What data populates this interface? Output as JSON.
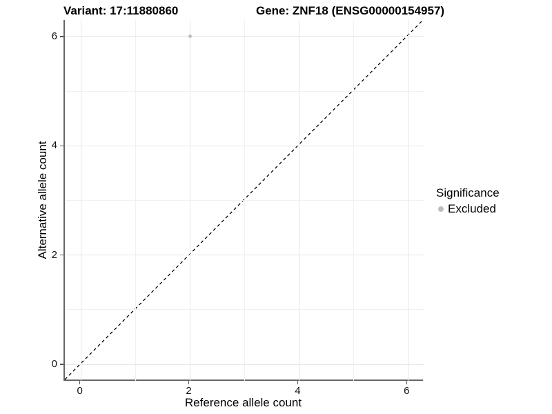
{
  "chart_data": {
    "type": "scatter",
    "title_left": "Variant: 17:11880860",
    "title_right": "Gene: ZNF18 (ENSG00000154957)",
    "xlabel": "Reference allele count",
    "ylabel": "Alternative allele count",
    "xlim": [
      -0.3,
      6.3
    ],
    "ylim": [
      -0.3,
      6.3
    ],
    "x_ticks": [
      0,
      2,
      4,
      6
    ],
    "y_ticks": [
      0,
      2,
      4,
      6
    ],
    "x_minor_gridlines": [
      1,
      3,
      5
    ],
    "y_minor_gridlines": [
      1,
      3,
      5
    ],
    "grid": true,
    "identity_line": {
      "style": "dashed",
      "slope": 1,
      "intercept": 0,
      "color": "#000000"
    },
    "series": [
      {
        "name": "Excluded",
        "color": "#bebebe",
        "points": [
          {
            "x": 2,
            "y": 6
          }
        ]
      }
    ],
    "legend": {
      "position": "right",
      "title": "Significance",
      "items": [
        {
          "label": "Excluded",
          "color": "#bebebe"
        }
      ]
    }
  },
  "colors": {
    "background": "#ffffff",
    "axis_line": "#666666",
    "tick_mark": "#555555",
    "grid_major": "#e5e5e5",
    "grid_minor": "#f1f1f1",
    "text": "#000000"
  }
}
